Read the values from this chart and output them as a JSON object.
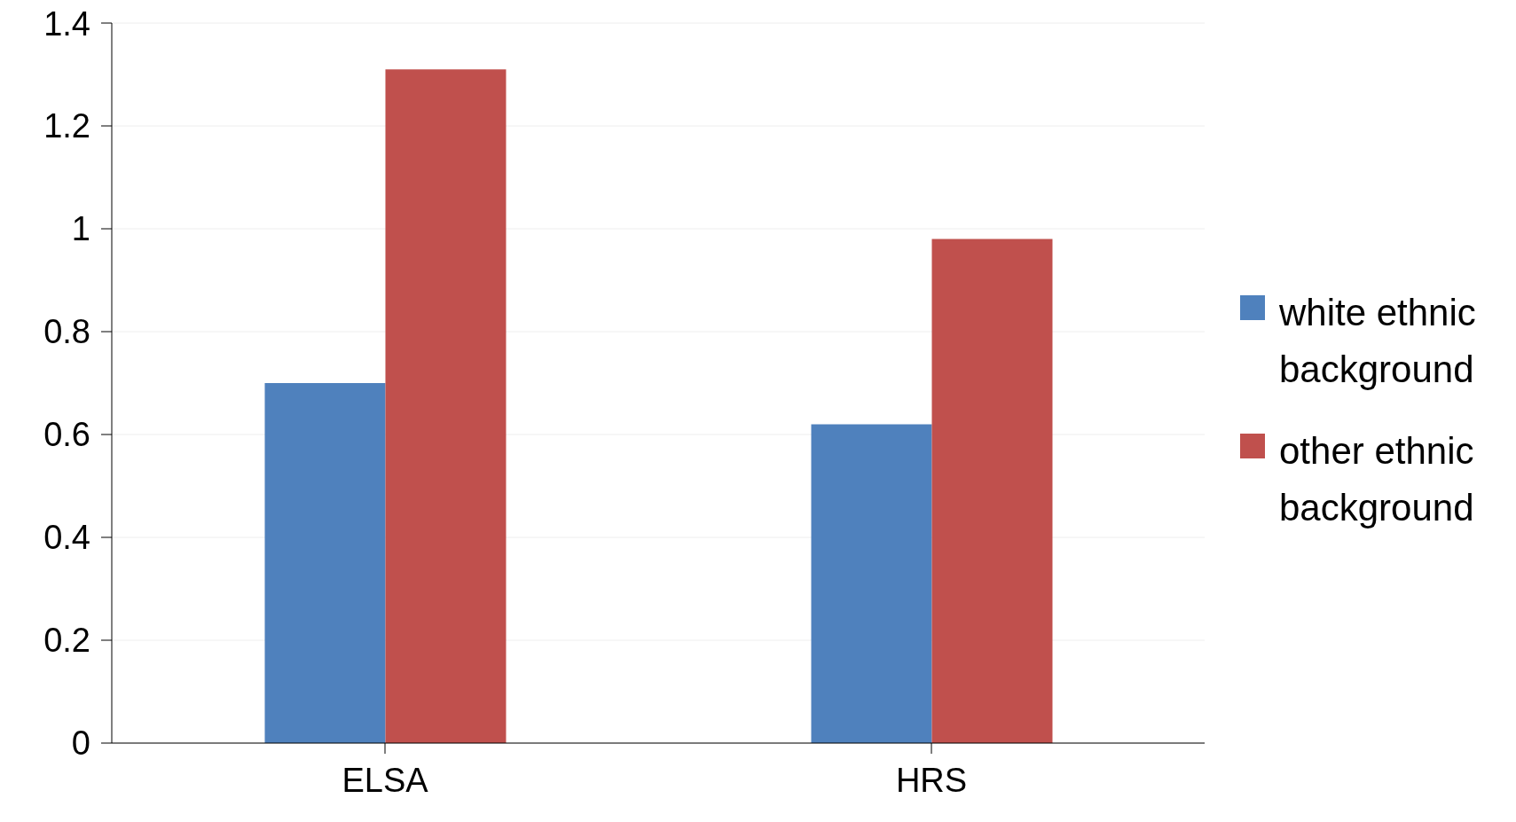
{
  "chart_data": {
    "type": "bar",
    "categories": [
      "ELSA",
      "HRS"
    ],
    "series": [
      {
        "name": "white ethnic background",
        "color": "#4f81bd",
        "values": [
          0.7,
          0.62
        ]
      },
      {
        "name": "other ethnic background",
        "color": "#c0504d",
        "values": [
          1.31,
          0.98
        ]
      }
    ],
    "ylim": [
      0,
      1.4
    ],
    "yticks": [
      0,
      0.2,
      0.4,
      0.6,
      0.8,
      1,
      1.2,
      1.4
    ],
    "grid": "y",
    "legend": "right"
  }
}
